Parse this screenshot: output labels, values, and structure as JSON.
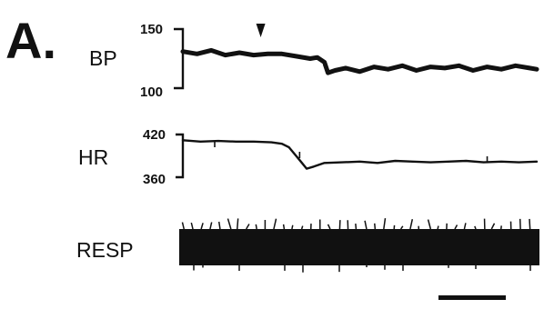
{
  "figure": {
    "panel_label": "A.",
    "time_scale_bar": true
  },
  "chart_data": {
    "type": "line",
    "title": "",
    "grid": false,
    "legend": "none",
    "x_domain": [
      0,
      100
    ],
    "marker_at_x": 22,
    "series": [
      {
        "name": "BP",
        "ylim": [
          100,
          150
        ],
        "ticks": [
          "150",
          "100"
        ],
        "x": [
          0,
          4,
          8,
          12,
          16,
          20,
          24,
          28,
          32,
          36,
          38,
          40,
          41,
          43,
          46,
          50,
          54,
          58,
          62,
          66,
          70,
          74,
          78,
          82,
          86,
          90,
          94,
          98,
          100
        ],
        "values": [
          131,
          129,
          132,
          128,
          130,
          128,
          129,
          129,
          127,
          125,
          126,
          122,
          113,
          115,
          117,
          114,
          118,
          116,
          119,
          115,
          118,
          117,
          119,
          115,
          118,
          116,
          119,
          117,
          116
        ]
      },
      {
        "name": "HR",
        "ylim": [
          360,
          420
        ],
        "ticks": [
          "420",
          "360"
        ],
        "x": [
          0,
          5,
          10,
          15,
          20,
          25,
          28,
          30,
          32,
          33,
          35,
          37,
          40,
          45,
          50,
          55,
          60,
          65,
          70,
          75,
          80,
          85,
          90,
          95,
          100
        ],
        "values": [
          412,
          410,
          411,
          410,
          410,
          409,
          407,
          402,
          390,
          384,
          372,
          375,
          380,
          381,
          382,
          380,
          383,
          382,
          381,
          382,
          383,
          381,
          382,
          381,
          382
        ]
      },
      {
        "name": "RESP",
        "ylim": [
          0,
          1
        ],
        "ticks": [],
        "x": [
          0,
          100
        ],
        "values": [
          0.5,
          0.5
        ]
      }
    ]
  }
}
